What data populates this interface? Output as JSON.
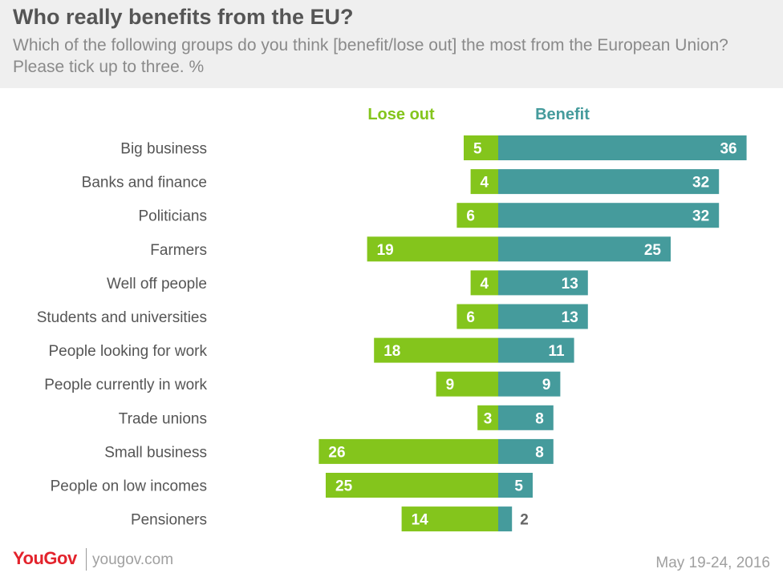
{
  "header": {
    "title": "Who really benefits from the EU?",
    "subtitle": "Which of the following groups do you think [benefit/lose out] the most from the European Union? Please tick up to three. %"
  },
  "footer": {
    "logo": "YouGov",
    "site": "yougov.com",
    "date": "May 19-24, 2016"
  },
  "colors": {
    "lose_out": "#84c51c",
    "benefit": "#459b9c",
    "category_text": "#555555"
  },
  "chart_data": {
    "type": "bar",
    "orientation": "horizontal-diverging",
    "categories": [
      "Big business",
      "Banks and finance",
      "Politicians",
      "Farmers",
      "Well off people",
      "Students and universities",
      "People looking for work",
      "People currently in work",
      "Trade unions",
      "Small business",
      "People on low incomes",
      "Pensioners"
    ],
    "series": [
      {
        "name": "Lose out",
        "values": [
          5,
          4,
          6,
          19,
          4,
          6,
          18,
          9,
          3,
          26,
          25,
          14
        ]
      },
      {
        "name": "Benefit",
        "values": [
          36,
          32,
          32,
          25,
          13,
          13,
          11,
          9,
          8,
          8,
          5,
          2
        ]
      }
    ],
    "unit": "%"
  }
}
